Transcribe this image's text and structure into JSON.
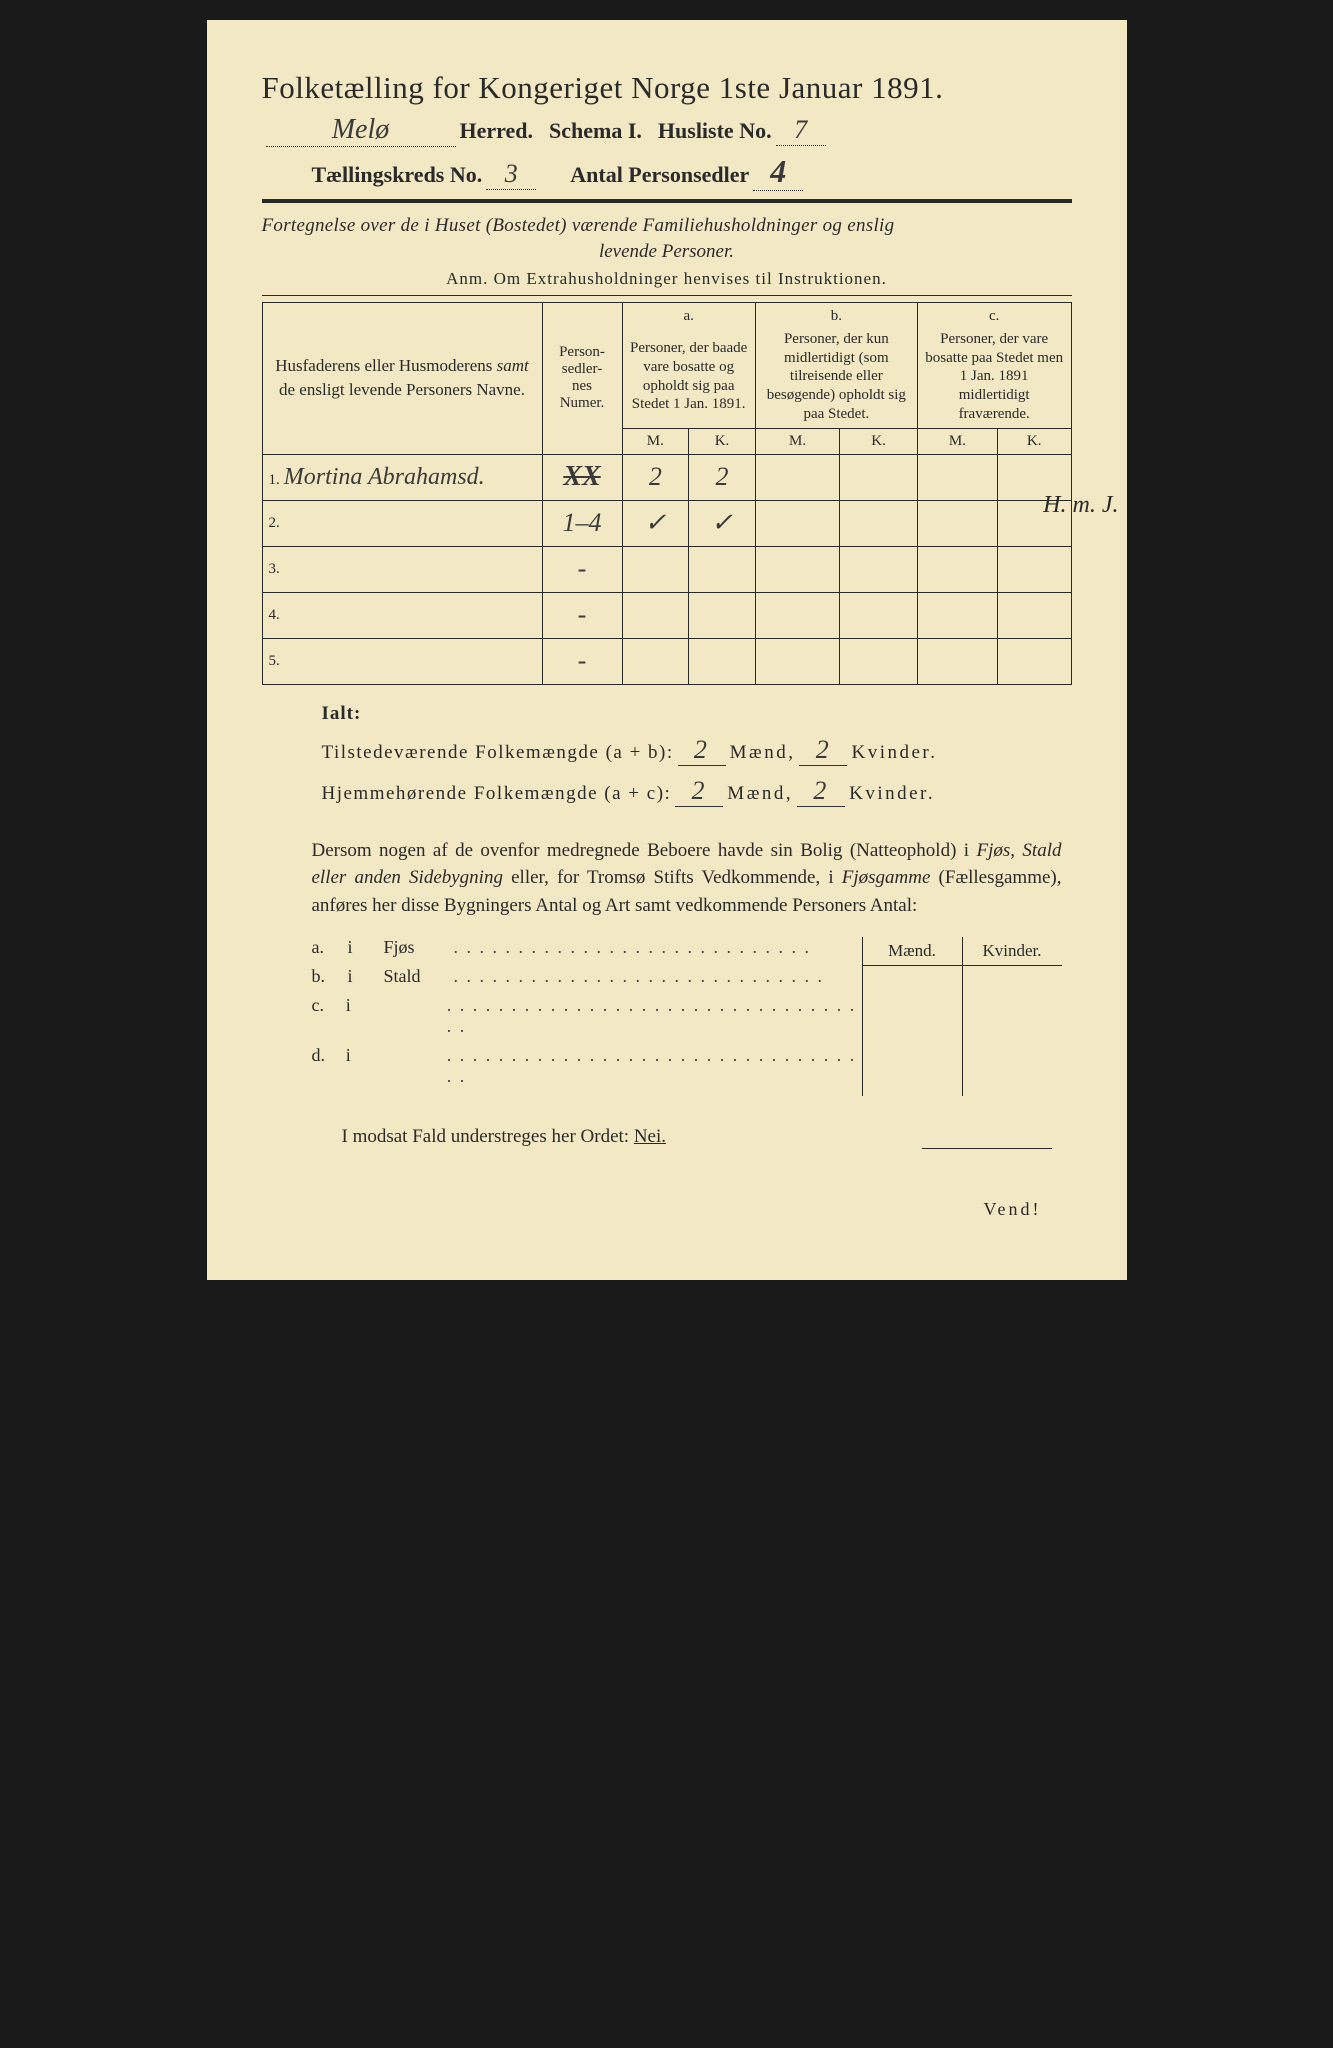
{
  "colors": {
    "paper": "#f2e8c4",
    "ink": "#2a2a2a",
    "background": "#1a1a1a"
  },
  "header": {
    "title": "Folketælling for Kongeriget Norge 1ste Januar 1891.",
    "herred_value": "Melø",
    "herred_label": "Herred.",
    "schema_label": "Schema I.",
    "husliste_label": "Husliste No.",
    "husliste_value": "7",
    "kreds_label": "Tællingskreds No.",
    "kreds_value": "3",
    "antal_label": "Antal Personsedler",
    "antal_value": "4",
    "antal_struck": true
  },
  "subtitle": {
    "line1": "Fortegnelse over de i Huset (Bostedet) værende Familiehusholdninger og enslig",
    "line2": "levende Personer.",
    "anm": "Anm.  Om Extrahusholdninger henvises til Instruktionen."
  },
  "table": {
    "col1": "Husfaderens eller Husmoderens samt de ensligt levende Personers Navne.",
    "col2": "Personsedlernes Numer.",
    "colA_head": "a.",
    "colA": "Personer, der baade vare bosatte og opholdt sig paa Stedet 1 Jan. 1891.",
    "colB_head": "b.",
    "colB": "Personer, der kun midlertidigt (som tilreisende eller besøgende) opholdt sig paa Stedet.",
    "colC_head": "c.",
    "colC": "Personer, der vare bosatte paa Stedet men 1 Jan. 1891 midlertidigt fraværende.",
    "M": "M.",
    "K": "K.",
    "rows": [
      {
        "num": "1.",
        "name": "Mortina Abrahamsd.",
        "personsedler": "",
        "personsedler_struck": "XX",
        "aM": "2",
        "aK": "2",
        "bM": "",
        "bK": "",
        "cM": "",
        "cK": ""
      },
      {
        "num": "2.",
        "name": "",
        "personsedler": "1–4",
        "aM": "✓",
        "aK": "✓",
        "bM": "",
        "bK": "",
        "cM": "",
        "cK": ""
      },
      {
        "num": "3.",
        "name": "",
        "personsedler": "-",
        "aM": "",
        "aK": "",
        "bM": "",
        "bK": "",
        "cM": "",
        "cK": ""
      },
      {
        "num": "4.",
        "name": "",
        "personsedler": "-",
        "aM": "",
        "aK": "",
        "bM": "",
        "bK": "",
        "cM": "",
        "cK": ""
      },
      {
        "num": "5.",
        "name": "",
        "personsedler": "-",
        "aM": "",
        "aK": "",
        "bM": "",
        "bK": "",
        "cM": "",
        "cK": ""
      }
    ]
  },
  "margin_note": "H. m. J.",
  "totals": {
    "ialt": "Ialt:",
    "line1_label": "Tilstedeværende Folkemængde (a + b):",
    "line1_m": "2",
    "line1_k": "2",
    "line2_label": "Hjemmehørende Folkemængde (a + c):",
    "line2_m": "2",
    "line2_k": "2",
    "maend": "Mænd,",
    "kvinder": "Kvinder."
  },
  "paragraph": "Dersom nogen af de ovenfor medregnede Beboere havde sin Bolig (Natteophold) i Fjøs, Stald eller anden Sidebygning eller, for Tromsø Stifts Vedkommende, i Fjøsgamme (Fællesgamme), anføres her disse Bygningers Antal og Art samt vedkommende Personers Antal:",
  "side": {
    "header_m": "Mænd.",
    "header_k": "Kvinder.",
    "rows": [
      {
        "a": "a.",
        "i": "i",
        "label": "Fjøs",
        "dots": ". . . . . . . . . . .    . . . . . . . . . . . . . . . . ."
      },
      {
        "a": "b.",
        "i": "i",
        "label": "Stald",
        "dots": ". . . . . . . . . . . . . . . . . . . . . . . . . . . . ."
      },
      {
        "a": "c.",
        "i": "i",
        "label": "",
        "dots": ". . . . . . . . . . . . . . . . . . . . . . . . . . . . . . . . . ."
      },
      {
        "a": "d.",
        "i": "i",
        "label": "",
        "dots": ". . . . . . . . . . . . . . . . . . . . . . . . . . . . . . . . . ."
      }
    ]
  },
  "nei": {
    "text": "I modsat Fald understreges her Ordet:",
    "word": "Nei."
  },
  "vend": "Vend!"
}
